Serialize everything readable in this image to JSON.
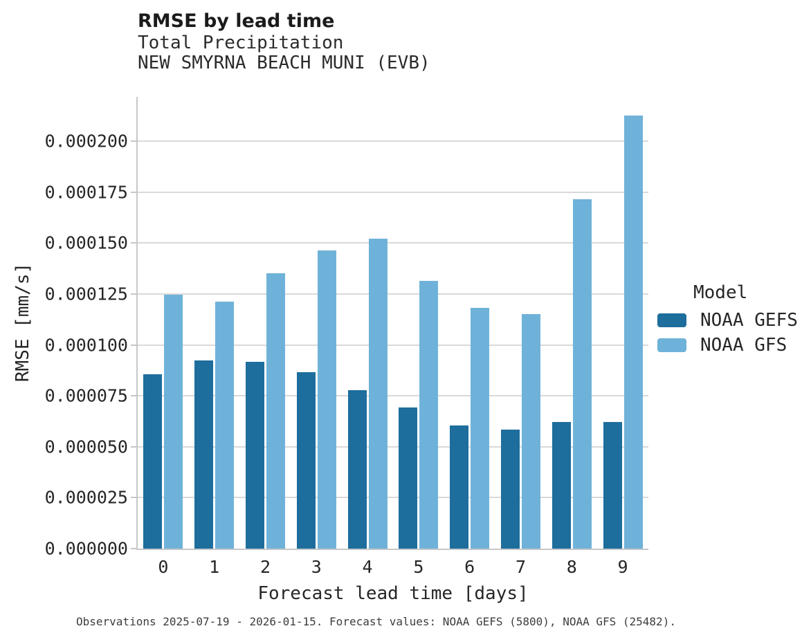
{
  "figure": {
    "title": "RMSE by lead time",
    "subtitle_line1": "Total Precipitation",
    "subtitle_line2": "NEW SMYRNA BEACH MUNI (EVB)",
    "caption": "Observations 2025-07-19 - 2026-01-15. Forecast values: NOAA GEFS (5800), NOAA GFS (25482)."
  },
  "legend": {
    "title": "Model",
    "entries": [
      {
        "label": "NOAA GEFS",
        "color": "#1d6d9d"
      },
      {
        "label": "NOAA GFS",
        "color": "#6fb2d9"
      }
    ]
  },
  "chart_data": {
    "type": "bar",
    "title": "RMSE by lead time",
    "subtitle": [
      "Total Precipitation",
      "NEW SMYRNA BEACH MUNI (EVB)"
    ],
    "xlabel": "Forecast lead time [days]",
    "ylabel": "RMSE [mm/s]",
    "categories": [
      "0",
      "1",
      "2",
      "3",
      "4",
      "5",
      "6",
      "7",
      "8",
      "9"
    ],
    "series": [
      {
        "name": "NOAA GEFS",
        "color": "#1d6d9d",
        "values": [
          8.55e-05,
          9.24e-05,
          9.17e-05,
          8.65e-05,
          7.77e-05,
          6.93e-05,
          6.05e-05,
          5.83e-05,
          6.2e-05,
          6.2e-05
        ]
      },
      {
        "name": "NOAA GFS",
        "color": "#6fb2d9",
        "values": [
          0.0001248,
          0.0001212,
          0.0001353,
          0.0001465,
          0.0001522,
          0.0001313,
          0.0001183,
          0.0001153,
          0.0001717,
          0.0002128
        ]
      }
    ],
    "ylim": [
      0,
      0.0002218
    ],
    "yticks": [
      0.0,
      2.5e-05,
      5e-05,
      7.5e-05,
      0.0001,
      0.000125,
      0.00015,
      0.000175,
      0.0002
    ],
    "ytick_labels": [
      "0.000000",
      "0.000025",
      "0.000050",
      "0.000075",
      "0.000100",
      "0.000125",
      "0.000150",
      "0.000175",
      "0.000200"
    ],
    "grid": true,
    "legend_title": "Model",
    "legend_position": "right",
    "caption": "Observations 2025-07-19 - 2026-01-15. Forecast values: NOAA GEFS (5800), NOAA GFS (25482)."
  },
  "colors": {
    "grid": "#d9d9d9",
    "spine": "#c7c7c7",
    "text": "#262626",
    "caption": "#3d3d3d"
  }
}
